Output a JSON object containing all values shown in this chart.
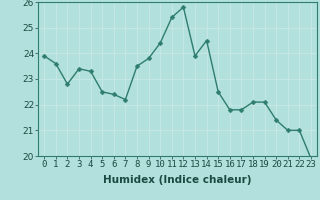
{
  "x": [
    0,
    1,
    2,
    3,
    4,
    5,
    6,
    7,
    8,
    9,
    10,
    11,
    12,
    13,
    14,
    15,
    16,
    17,
    18,
    19,
    20,
    21,
    22,
    23
  ],
  "y": [
    23.9,
    23.6,
    22.8,
    23.4,
    23.3,
    22.5,
    22.4,
    22.2,
    23.5,
    23.8,
    24.4,
    25.4,
    25.8,
    23.9,
    24.5,
    22.5,
    21.8,
    21.8,
    22.1,
    22.1,
    21.4,
    21.0,
    21.0,
    19.9
  ],
  "line_color": "#2e7d6e",
  "marker_color": "#2e7d6e",
  "bg_color": "#b2e0dc",
  "grid_color": "#c9e8e4",
  "xlabel": "Humidex (Indice chaleur)",
  "ylim": [
    20,
    26
  ],
  "xlim": [
    -0.5,
    23.5
  ],
  "yticks": [
    20,
    21,
    22,
    23,
    24,
    25,
    26
  ],
  "xticks": [
    0,
    1,
    2,
    3,
    4,
    5,
    6,
    7,
    8,
    9,
    10,
    11,
    12,
    13,
    14,
    15,
    16,
    17,
    18,
    19,
    20,
    21,
    22,
    23
  ],
  "xlabel_fontsize": 7.5,
  "tick_fontsize": 6.5,
  "marker_size": 2.5,
  "line_width": 1.0
}
